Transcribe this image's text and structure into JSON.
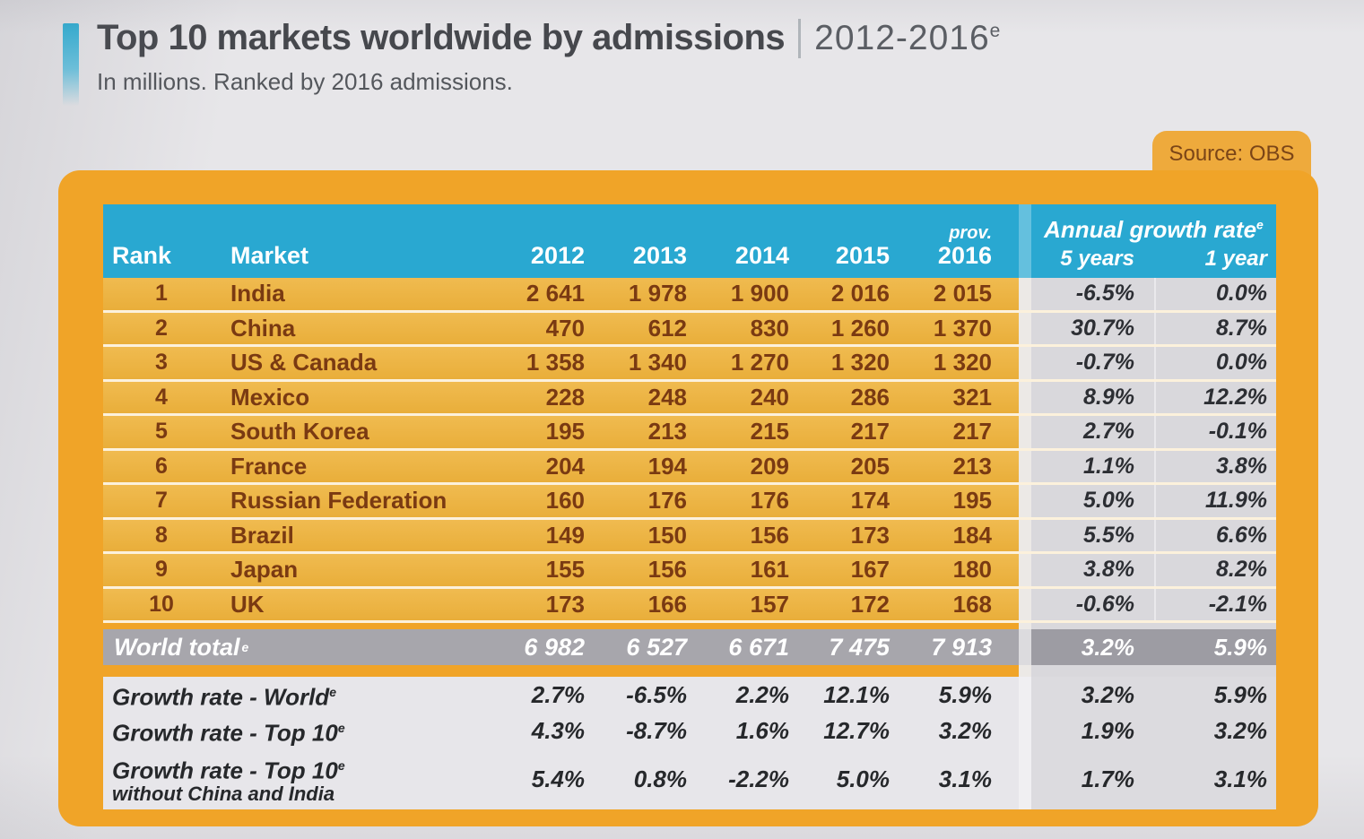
{
  "page": {
    "title": "Top 10 markets worldwide by admissions",
    "title_separator": "|",
    "period": "2012-2016",
    "period_sup": "e",
    "subtitle": "In millions. Ranked by 2016 admissions.",
    "source": "Source: OBS"
  },
  "colors": {
    "page_bg": "#e7e6e9",
    "frame_orange": "#f0a428",
    "row_gold": "#ecb446",
    "header_blue": "#29a8d1",
    "brown_text": "#7a3a12",
    "growth_column_bg": "#d9d8dc",
    "growth_text": "#2c2e33",
    "world_row_bg": "#a7a6ac",
    "accent_blue": "#2fb0d6"
  },
  "table": {
    "header": {
      "rank": "Rank",
      "market": "Market",
      "years": [
        "2012",
        "2013",
        "2014",
        "2015"
      ],
      "prov": "prov.",
      "prov_year": "2016",
      "growth_title": "Annual growth rate",
      "growth_sup": "e",
      "growth_5y": "5 years",
      "growth_1y": "1 year"
    },
    "rows": [
      {
        "rank": "1",
        "market": "India",
        "values": [
          "2 641",
          "1 978",
          "1 900",
          "2 016",
          "2 015"
        ],
        "g5": "-6.5%",
        "g1": "0.0%"
      },
      {
        "rank": "2",
        "market": "China",
        "values": [
          "470",
          "612",
          "830",
          "1 260",
          "1 370"
        ],
        "g5": "30.7%",
        "g1": "8.7%"
      },
      {
        "rank": "3",
        "market": "US & Canada",
        "values": [
          "1 358",
          "1 340",
          "1 270",
          "1 320",
          "1 320"
        ],
        "g5": "-0.7%",
        "g1": "0.0%"
      },
      {
        "rank": "4",
        "market": "Mexico",
        "values": [
          "228",
          "248",
          "240",
          "286",
          "321"
        ],
        "g5": "8.9%",
        "g1": "12.2%"
      },
      {
        "rank": "5",
        "market": "South Korea",
        "values": [
          "195",
          "213",
          "215",
          "217",
          "217"
        ],
        "g5": "2.7%",
        "g1": "-0.1%"
      },
      {
        "rank": "6",
        "market": "France",
        "values": [
          "204",
          "194",
          "209",
          "205",
          "213"
        ],
        "g5": "1.1%",
        "g1": "3.8%"
      },
      {
        "rank": "7",
        "market": "Russian Federation",
        "values": [
          "160",
          "176",
          "176",
          "174",
          "195"
        ],
        "g5": "5.0%",
        "g1": "11.9%"
      },
      {
        "rank": "8",
        "market": "Brazil",
        "values": [
          "149",
          "150",
          "156",
          "173",
          "184"
        ],
        "g5": "5.5%",
        "g1": "6.6%"
      },
      {
        "rank": "9",
        "market": "Japan",
        "values": [
          "155",
          "156",
          "161",
          "167",
          "180"
        ],
        "g5": "3.8%",
        "g1": "8.2%"
      },
      {
        "rank": "10",
        "market": "UK",
        "values": [
          "173",
          "166",
          "157",
          "172",
          "168"
        ],
        "g5": "-0.6%",
        "g1": "-2.1%"
      }
    ],
    "world_total": {
      "label": "World total",
      "sup": "e",
      "values": [
        "6 982",
        "6 527",
        "6 671",
        "7 475",
        "7 913"
      ],
      "g5": "3.2%",
      "g1": "5.9%"
    },
    "growth_rows": [
      {
        "label": "Growth rate - World",
        "sup": "e",
        "sublabel": "",
        "values": [
          "2.7%",
          "-6.5%",
          "2.2%",
          "12.1%",
          "5.9%"
        ],
        "g5": "3.2%",
        "g1": "5.9%"
      },
      {
        "label": "Growth rate - Top 10",
        "sup": "e",
        "sublabel": "",
        "values": [
          "4.3%",
          "-8.7%",
          "1.6%",
          "12.7%",
          "3.2%"
        ],
        "g5": "1.9%",
        "g1": "3.2%"
      },
      {
        "label": "Growth rate - Top 10",
        "sup": "e",
        "sublabel": "without China and India",
        "values": [
          "5.4%",
          "0.8%",
          "-2.2%",
          "5.0%",
          "3.1%"
        ],
        "g5": "1.7%",
        "g1": "3.1%"
      }
    ]
  }
}
